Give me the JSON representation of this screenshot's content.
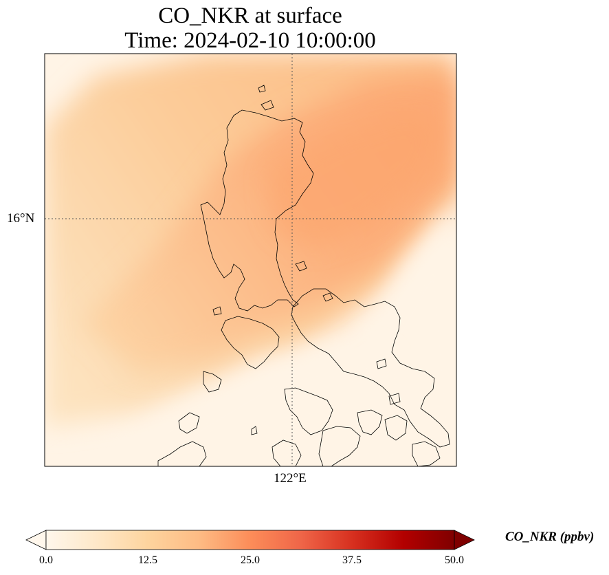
{
  "title": {
    "line1": "CO_NKR at surface",
    "line2": "Time: 2024-02-10 10:00:00"
  },
  "map": {
    "lat_label": "16°N",
    "lon_label": "122°E",
    "gridline_style": "dotted",
    "coastline_color": "#000000"
  },
  "colorbar": {
    "label": "CO_NKR (ppbv)",
    "colormap": "OrRd",
    "min": 0.0,
    "max": 50.0,
    "extend": "both",
    "ticks": [
      "0.0",
      "12.5",
      "25.0",
      "37.5",
      "50.0"
    ],
    "colors": [
      "#fff7ec",
      "#fee8c8",
      "#fdd49e",
      "#fdbb84",
      "#fc8d59",
      "#ef6548",
      "#d7301f",
      "#b30000",
      "#7f0000"
    ]
  }
}
